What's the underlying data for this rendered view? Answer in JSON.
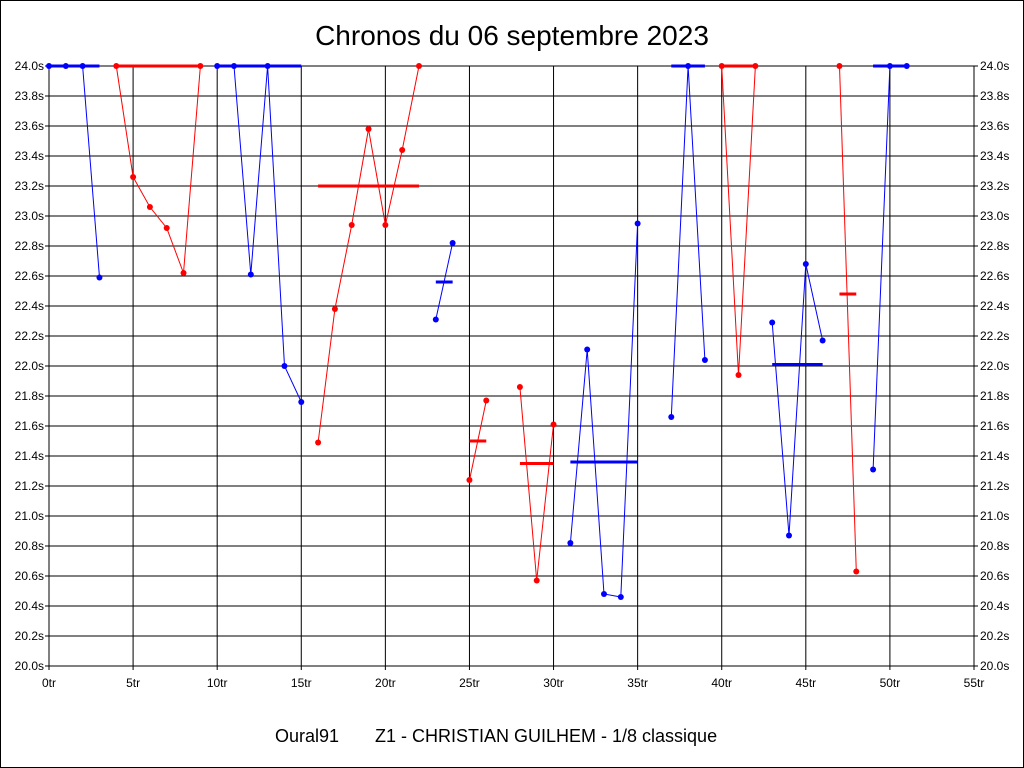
{
  "chart_data": {
    "type": "line",
    "title": "Chronos du 06 septembre 2023",
    "footer_left": "Oural91",
    "footer_right": "Z1 - CHRISTIAN GUILHEM - 1/8 classique",
    "xlim": [
      0,
      55
    ],
    "ylim": [
      20.0,
      24.0
    ],
    "x_ticks": [
      0,
      5,
      10,
      15,
      20,
      25,
      30,
      35,
      40,
      45,
      50,
      55
    ],
    "x_tick_labels": [
      "0tr",
      "5tr",
      "10tr",
      "15tr",
      "20tr",
      "25tr",
      "30tr",
      "35tr",
      "40tr",
      "45tr",
      "50tr",
      "55tr"
    ],
    "y_ticks": [
      20.0,
      20.2,
      20.4,
      20.6,
      20.8,
      21.0,
      21.2,
      21.4,
      21.6,
      21.8,
      22.0,
      22.2,
      22.4,
      22.6,
      22.8,
      23.0,
      23.2,
      23.4,
      23.6,
      23.8,
      24.0
    ],
    "y_tick_labels": [
      "20.0s",
      "20.2s",
      "20.4s",
      "20.6s",
      "20.8s",
      "21.0s",
      "21.2s",
      "21.4s",
      "21.6s",
      "21.8s",
      "22.0s",
      "22.2s",
      "22.4s",
      "22.6s",
      "22.8s",
      "23.0s",
      "23.2s",
      "23.4s",
      "23.6s",
      "23.8s",
      "24.0s"
    ],
    "grid": true,
    "colors": {
      "blue": "#0000ff",
      "red": "#ff0000"
    },
    "segments": [
      {
        "color": "blue",
        "points": [
          [
            0,
            24.0
          ],
          [
            1,
            24.0
          ],
          [
            2,
            24.0
          ],
          [
            3,
            22.59
          ]
        ],
        "mean": [
          0,
          3,
          24.0
        ]
      },
      {
        "color": "red",
        "points": [
          [
            4,
            24.0
          ],
          [
            5,
            23.26
          ],
          [
            6,
            23.06
          ],
          [
            7,
            22.92
          ],
          [
            8,
            22.62
          ],
          [
            9,
            24.0
          ]
        ],
        "mean": [
          4,
          9,
          24.0
        ]
      },
      {
        "color": "blue",
        "points": [
          [
            10,
            24.0
          ],
          [
            11,
            24.0
          ],
          [
            12,
            22.61
          ],
          [
            13,
            24.0
          ],
          [
            14,
            22.0
          ],
          [
            15,
            21.76
          ]
        ],
        "mean": [
          10,
          15,
          24.0
        ]
      },
      {
        "color": "red",
        "points": [
          [
            16,
            21.49
          ],
          [
            17,
            22.38
          ],
          [
            18,
            22.94
          ],
          [
            19,
            23.58
          ],
          [
            20,
            22.94
          ],
          [
            21,
            23.44
          ],
          [
            22,
            24.0
          ]
        ],
        "mean": [
          16,
          22,
          23.2
        ]
      },
      {
        "color": "blue",
        "points": [
          [
            23,
            22.31
          ],
          [
            24,
            22.82
          ]
        ],
        "mean": [
          23,
          24,
          22.56
        ]
      },
      {
        "color": "red",
        "points": [
          [
            25,
            21.24
          ],
          [
            26,
            21.77
          ]
        ],
        "mean": [
          25,
          26,
          21.5
        ]
      },
      {
        "color": "red",
        "points": [
          [
            28,
            21.86
          ],
          [
            29,
            20.57
          ],
          [
            30,
            21.61
          ]
        ],
        "mean": [
          28,
          30,
          21.35
        ]
      },
      {
        "color": "blue",
        "points": [
          [
            31,
            20.82
          ],
          [
            32,
            22.11
          ],
          [
            33,
            20.48
          ],
          [
            34,
            20.46
          ],
          [
            35,
            22.95
          ]
        ],
        "mean": [
          31,
          35,
          21.36
        ]
      },
      {
        "color": "blue",
        "points": [
          [
            37,
            21.66
          ],
          [
            38,
            24.0
          ],
          [
            39,
            22.04
          ]
        ],
        "mean": [
          37,
          39,
          24.0
        ]
      },
      {
        "color": "red",
        "points": [
          [
            40,
            24.0
          ],
          [
            41,
            21.94
          ],
          [
            42,
            24.0
          ]
        ],
        "mean": [
          40,
          42,
          24.0
        ]
      },
      {
        "color": "blue",
        "points": [
          [
            43,
            22.29
          ],
          [
            44,
            20.87
          ],
          [
            45,
            22.68
          ],
          [
            46,
            22.17
          ]
        ],
        "mean": [
          43,
          46,
          22.01
        ]
      },
      {
        "color": "red",
        "points": [
          [
            47,
            24.0
          ],
          [
            48,
            20.63
          ]
        ],
        "mean": [
          47,
          48,
          22.48
        ]
      },
      {
        "color": "blue",
        "points": [
          [
            49,
            21.31
          ],
          [
            50,
            24.0
          ],
          [
            51,
            24.0
          ]
        ],
        "mean": [
          49,
          51,
          24.0
        ]
      }
    ]
  }
}
